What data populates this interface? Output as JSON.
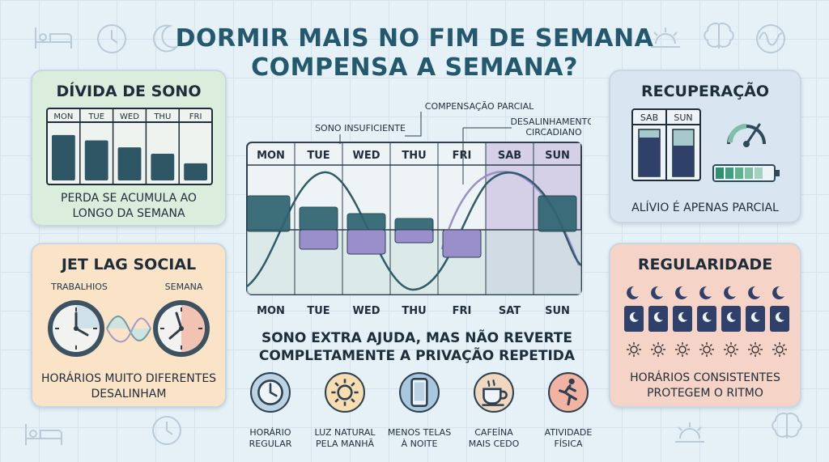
{
  "title_line1": "DORMIR MAIS NO FIM DE SEMANA",
  "title_line2": "COMPENSA A SEMANA?",
  "divida": {
    "title": "DÍVIDA DE SONO",
    "days": [
      "MON",
      "TUE",
      "WED",
      "THU",
      "FRI"
    ],
    "levels": [
      0.85,
      0.75,
      0.62,
      0.5,
      0.32
    ],
    "caption_line1": "PERDA SE ACUMULA AO",
    "caption_line2": "LONGO DA SEMANA"
  },
  "jetlag": {
    "title": "JET LAG SOCIAL",
    "label_left": "TRABALHIOS",
    "label_right": "SEMANA",
    "caption_line1": "HORÁRIOS MUITO DIFERENTES",
    "caption_line2": "DESALINHAM"
  },
  "recuperacao": {
    "title": "RECUPERAÇÃO",
    "days": [
      "SAB",
      "SUN"
    ],
    "caption": "ALÍVIO É APENAS PARCIAL"
  },
  "regularidade": {
    "title": "REGULARIDADE",
    "caption_line1": "HORÁRIOS CONSISTENTES",
    "caption_line2": "PROTEGEM O RITMO"
  },
  "chart": {
    "top_days": [
      "MON",
      "TUE",
      "WED",
      "THU",
      "FRI",
      "SAB",
      "SUN"
    ],
    "bottom_days": [
      "MON",
      "TUE",
      "WED",
      "THU",
      "FRI",
      "SAT",
      "SUN"
    ],
    "annotations": {
      "insuficiente": "SONO INSUFICIENTE",
      "parcial": "COMPENSAÇÃO PARCIAL",
      "desal_line1": "DESALINHAMENTO",
      "desal_line2": "CIRCADIANO"
    }
  },
  "summary_line1": "SONO EXTRA AJUDA, MAS NÃO REVERTE",
  "summary_line2": "COMPLETAMENTE A PRIVAÇÃO REPETIDA",
  "tips": [
    {
      "line1": "HORÁRIO",
      "line2": "REGULAR",
      "icon": "clock-icon",
      "color": "#bcd3e6"
    },
    {
      "line1": "LUZ NATURAL",
      "line2": "PELA MANHÃ",
      "icon": "sun-icon",
      "color": "#f7ddb0"
    },
    {
      "line1": "MENOS TELAS",
      "line2": "À NOITE",
      "icon": "phone-icon",
      "color": "#a9c7df"
    },
    {
      "line1": "CAFEÍNA",
      "line2": "MAIS CEDO",
      "icon": "coffee-icon",
      "color": "#efd8bf"
    },
    {
      "line1": "ATIVIDADE",
      "line2": "FÍSICA",
      "icon": "running-icon",
      "color": "#f3b3a3"
    }
  ]
}
